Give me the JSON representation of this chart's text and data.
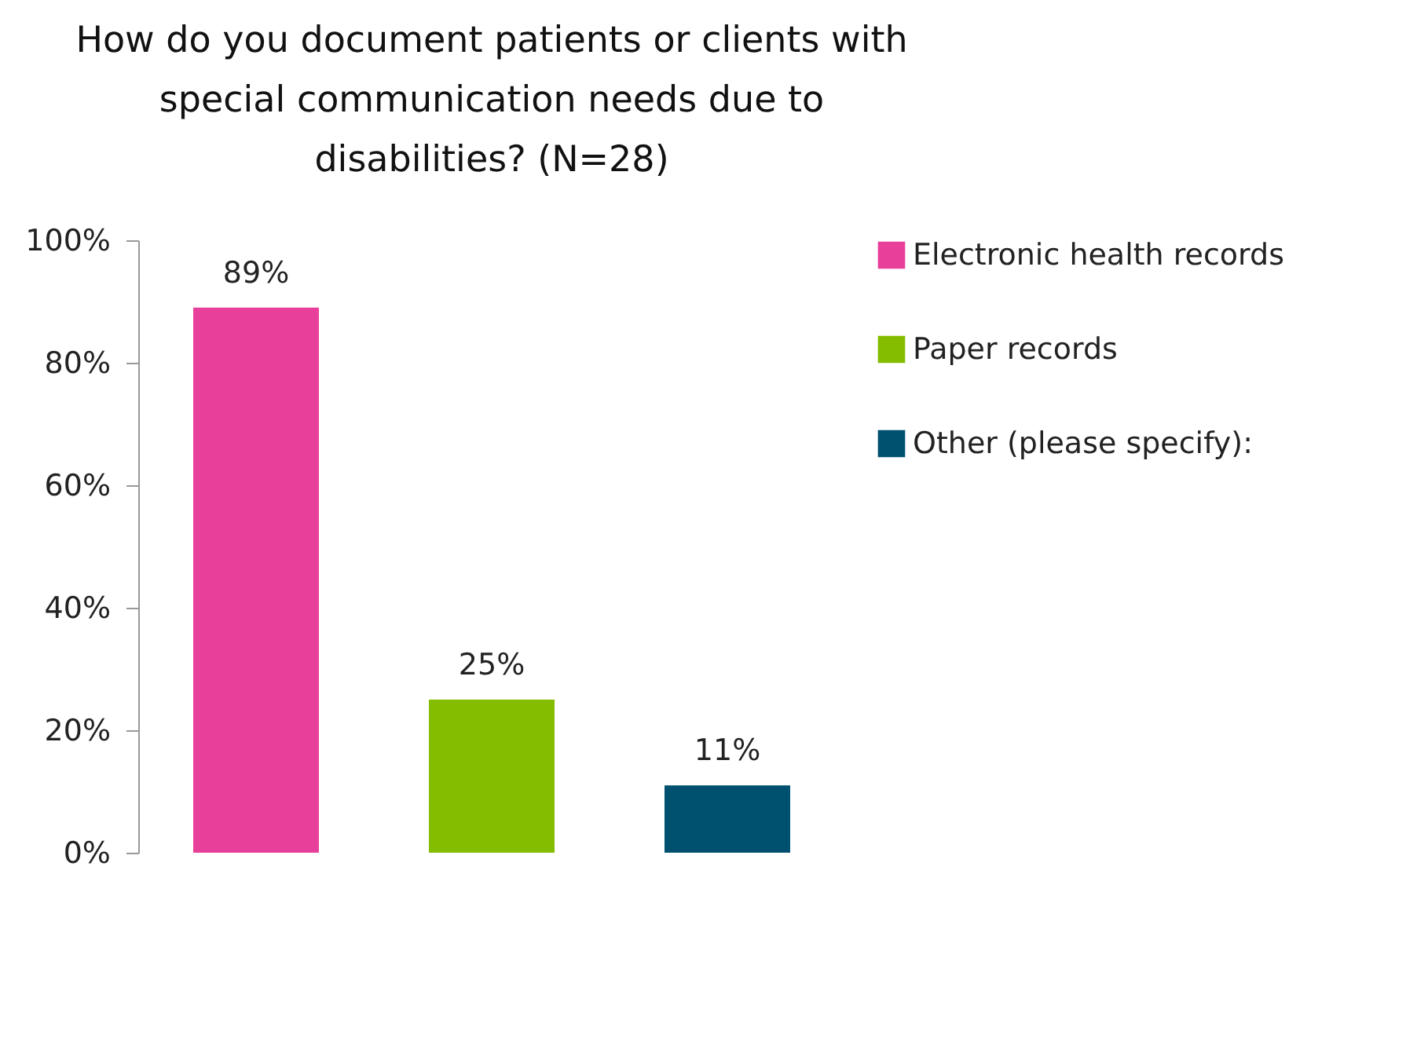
{
  "chart_data": {
    "type": "bar",
    "title": "How do you document patients or clients with special communication needs due to disabilities? (N=28)",
    "categories": [
      null,
      null,
      null
    ],
    "stacked": true,
    "series": [
      {
        "name": "Electronic health records",
        "color": "#e8409a",
        "values": [
          89,
          null,
          null
        ]
      },
      {
        "name": "Paper records",
        "color": "#84bd00",
        "values": [
          null,
          25,
          null
        ]
      },
      {
        "name": "Other (please specify):",
        "color": "#005170",
        "values": [
          null,
          null,
          11
        ]
      }
    ],
    "ylim": [
      0,
      100
    ],
    "yticks": [
      {
        "value": 0,
        "label": "0%"
      },
      {
        "value": 20,
        "label": "20%"
      },
      {
        "value": 40,
        "label": "40%"
      },
      {
        "value": 60,
        "label": "60%"
      },
      {
        "value": 80,
        "label": "80%"
      },
      {
        "value": 100,
        "label": "100%"
      }
    ],
    "totals": [
      "89%",
      "25%",
      "11%"
    ],
    "grid": false,
    "legend": "right",
    "tick_labels": "y"
  }
}
